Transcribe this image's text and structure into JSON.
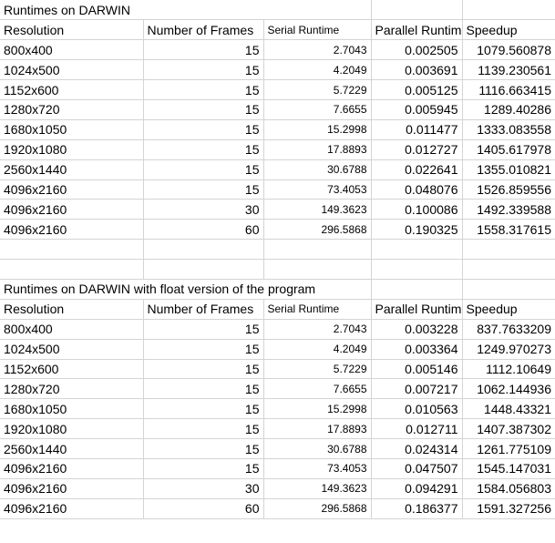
{
  "tables": [
    {
      "title": "Runtimes on DARWIN",
      "header": [
        "Resolution",
        "Number of Frames",
        "Serial Runtime",
        "Parallel Runtim",
        "Speedup"
      ],
      "rows": [
        [
          "800x400",
          "15",
          "2.7043",
          "0.002505",
          "1079.560878"
        ],
        [
          "1024x500",
          "15",
          "4.2049",
          "0.003691",
          "1139.230561"
        ],
        [
          "1152x600",
          "15",
          "5.7229",
          "0.005125",
          "1116.663415"
        ],
        [
          "1280x720",
          "15",
          "7.6655",
          "0.005945",
          "1289.40286"
        ],
        [
          "1680x1050",
          "15",
          "15.2998",
          "0.011477",
          "1333.083558"
        ],
        [
          "1920x1080",
          "15",
          "17.8893",
          "0.012727",
          "1405.617978"
        ],
        [
          "2560x1440",
          "15",
          "30.6788",
          "0.022641",
          "1355.010821"
        ],
        [
          "4096x2160",
          "15",
          "73.4053",
          "0.048076",
          "1526.859556"
        ],
        [
          "4096x2160",
          "30",
          "149.3623",
          "0.100086",
          "1492.339588"
        ],
        [
          "4096x2160",
          "60",
          "296.5868",
          "0.190325",
          "1558.317615"
        ]
      ]
    },
    {
      "title": "Runtimes on DARWIN with float version of the program",
      "header": [
        "Resolution",
        "Number of Frames",
        "Serial Runtime",
        "Parallel Runtim",
        "Speedup"
      ],
      "rows": [
        [
          "800x400",
          "15",
          "2.7043",
          "0.003228",
          "837.7633209"
        ],
        [
          "1024x500",
          "15",
          "4.2049",
          "0.003364",
          "1249.970273"
        ],
        [
          "1152x600",
          "15",
          "5.7229",
          "0.005146",
          "1112.10649"
        ],
        [
          "1280x720",
          "15",
          "7.6655",
          "0.007217",
          "1062.144936"
        ],
        [
          "1680x1050",
          "15",
          "15.2998",
          "0.010563",
          "1448.43321"
        ],
        [
          "1920x1080",
          "15",
          "17.8893",
          "0.012711",
          "1407.387302"
        ],
        [
          "2560x1440",
          "15",
          "30.6788",
          "0.024314",
          "1261.775109"
        ],
        [
          "4096x2160",
          "15",
          "73.4053",
          "0.047507",
          "1545.147031"
        ],
        [
          "4096x2160",
          "30",
          "149.3623",
          "0.094291",
          "1584.056803"
        ],
        [
          "4096x2160",
          "60",
          "296.5868",
          "0.186377",
          "1591.327256"
        ]
      ]
    }
  ]
}
